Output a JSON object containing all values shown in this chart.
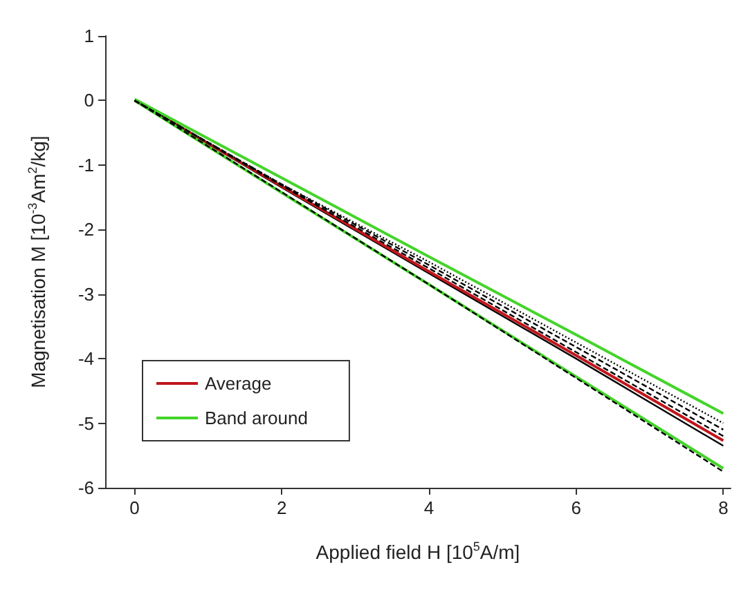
{
  "chart_data": {
    "type": "line",
    "xlabel": "Applied field H [10$^{5}$A/m]",
    "ylabel": "Magnetisation M [10$^{-3}$Am$^{2}$/kg]",
    "x": [
      0,
      2,
      4,
      6,
      8
    ],
    "series": [
      {
        "color": "#000000",
        "line_style": "dotted",
        "values": [
          0,
          -1.3,
          -2.5,
          -3.75,
          -5.0
        ]
      },
      {
        "color": "#000000",
        "line_style": "dashed",
        "values": [
          0,
          -1.3,
          -2.55,
          -3.82,
          -5.1
        ]
      },
      {
        "color": "#000000",
        "line_style": "dashed",
        "values": [
          0,
          -1.32,
          -2.6,
          -3.9,
          -5.2
        ]
      },
      {
        "color": "#000000",
        "line_style": "solid",
        "values": [
          0,
          -1.35,
          -2.68,
          -4.0,
          -5.35
        ]
      },
      {
        "color": "#000000",
        "line_style": "dashed",
        "values": [
          0,
          -1.42,
          -2.85,
          -4.3,
          -5.75
        ]
      },
      {
        "name": "Average",
        "color": "#c0151b",
        "line_style": "solid",
        "values": [
          0,
          -1.33,
          -2.65,
          -3.95,
          -5.27
        ]
      },
      {
        "name": "Band around",
        "color": "#44d42a",
        "line_style": "solid",
        "values": [
          0.02,
          -1.2,
          -2.42,
          -3.63,
          -4.85
        ]
      },
      {
        "color": "#44d42a",
        "line_style": "solid",
        "values": [
          0,
          -1.43,
          -2.85,
          -4.28,
          -5.7
        ]
      }
    ],
    "xlim": [
      -0.4,
      8.1
    ],
    "ylim": [
      -6,
      1
    ],
    "xticks": [
      0,
      2,
      4,
      6,
      8
    ],
    "yticks": [
      -6,
      -5,
      -4,
      -3,
      -2,
      -1,
      0,
      1
    ],
    "legend": "bottom left",
    "marker": "none",
    "grid": false
  }
}
